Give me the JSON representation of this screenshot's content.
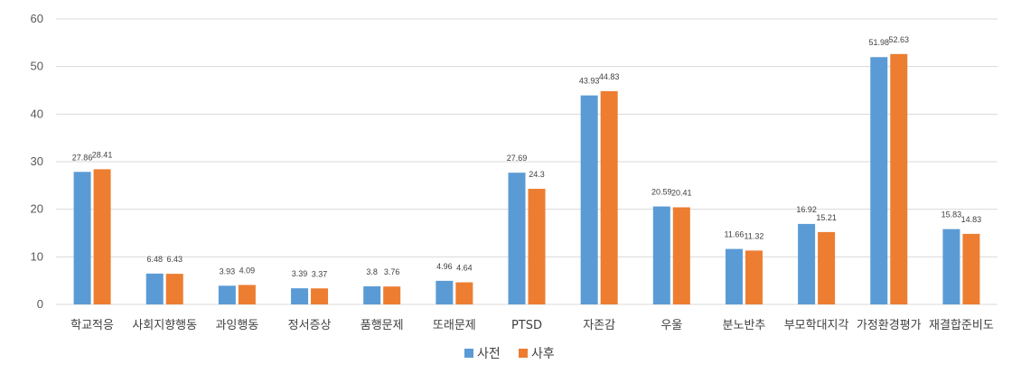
{
  "chart_data": {
    "type": "bar",
    "categories": [
      "학교적응",
      "사회지향행동",
      "과잉행동",
      "정서증상",
      "품행문제",
      "또래문제",
      "PTSD",
      "자존감",
      "우울",
      "분노반추",
      "부모학대지각",
      "가정환경평가",
      "재결합준비도"
    ],
    "series": [
      {
        "name": "사전",
        "color": "#5B9BD5",
        "values": [
          27.86,
          6.48,
          3.93,
          3.39,
          3.8,
          4.96,
          27.69,
          43.93,
          20.59,
          11.66,
          16.92,
          51.98,
          15.83
        ],
        "labels": [
          "27.86",
          "6.48",
          "3.93",
          "3.39",
          "3.8",
          "4.96",
          "27.69",
          "43.93",
          "20.59",
          "11.66",
          "16.92",
          "51.98",
          "15.83"
        ]
      },
      {
        "name": "사후",
        "color": "#ED7D31",
        "values": [
          28.41,
          6.43,
          4.09,
          3.37,
          3.76,
          4.64,
          24.3,
          44.83,
          20.41,
          11.32,
          15.21,
          52.63,
          14.83
        ],
        "labels": [
          "28.41",
          "6.43",
          "4.09",
          "3.37",
          "3.76",
          "4.64",
          "24.3",
          "44.83",
          "20.41",
          "11.32",
          "15.21",
          "52.63",
          "14.83"
        ]
      }
    ],
    "yticks": [
      "0",
      "10",
      "20",
      "30",
      "40",
      "50",
      "60"
    ],
    "ylim": [
      0,
      60
    ],
    "grid": true,
    "legend_position": "bottom-center",
    "gridline_color": "#D9D9D9"
  }
}
